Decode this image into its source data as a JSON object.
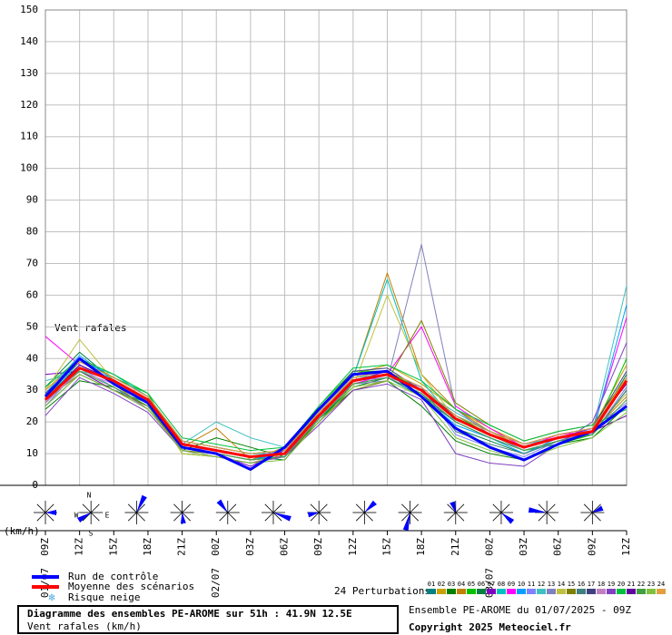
{
  "chart_data": {
    "type": "line",
    "title": "Diagramme des ensembles PE-AROME sur 51h : 41.9N 12.5E",
    "subtitle": "Vent rafales (km/h)",
    "annotation": "Vent rafales",
    "unit_label": "(km/h)",
    "run_info": "Ensemble PE-AROME du 01/07/2025 - 09Z",
    "copyright": "Copyright 2025 Meteociel.fr",
    "snow_legend": "Risque neige",
    "compass": [
      "N",
      "W",
      "E",
      "S"
    ],
    "x": [
      0,
      3,
      6,
      9,
      12,
      15,
      18,
      21,
      24,
      27,
      30,
      33,
      36,
      39,
      42,
      45,
      48,
      51
    ],
    "xlim": [
      0,
      51
    ],
    "xticks": [
      {
        "value": 0,
        "label": "09Z"
      },
      {
        "value": 3,
        "label": "12Z"
      },
      {
        "value": 6,
        "label": "15Z"
      },
      {
        "value": 9,
        "label": "18Z"
      },
      {
        "value": 12,
        "label": "21Z"
      },
      {
        "value": 15,
        "label": "00Z"
      },
      {
        "value": 18,
        "label": "03Z"
      },
      {
        "value": 21,
        "label": "06Z"
      },
      {
        "value": 24,
        "label": "09Z"
      },
      {
        "value": 27,
        "label": "12Z"
      },
      {
        "value": 30,
        "label": "15Z"
      },
      {
        "value": 33,
        "label": "18Z"
      },
      {
        "value": 36,
        "label": "21Z"
      },
      {
        "value": 39,
        "label": "00Z"
      },
      {
        "value": 42,
        "label": "03Z"
      },
      {
        "value": 45,
        "label": "06Z"
      },
      {
        "value": 48,
        "label": "09Z"
      },
      {
        "value": 51,
        "label": "12Z"
      }
    ],
    "date_labels": [
      {
        "value": 0,
        "label": "01/07"
      },
      {
        "value": 15,
        "label": "02/07"
      },
      {
        "value": 39,
        "label": "03/07"
      }
    ],
    "ylim": [
      0,
      150
    ],
    "yticks": [
      0,
      10,
      20,
      30,
      40,
      50,
      60,
      70,
      80,
      90,
      100,
      110,
      120,
      130,
      140,
      150
    ],
    "grid": true,
    "series": [
      {
        "name": "Run de contrôle",
        "color": "#0000ff",
        "values": [
          28,
          40,
          32,
          26,
          12,
          10,
          5,
          12,
          24,
          35,
          36,
          28,
          18,
          12,
          8,
          13,
          17,
          25
        ]
      },
      {
        "name": "Moyenne des scénarios",
        "color": "#ff0000",
        "values": [
          27,
          37,
          33,
          27,
          13,
          11,
          9,
          10,
          22,
          33,
          35,
          30,
          21,
          16,
          12,
          15,
          17,
          33
        ]
      }
    ],
    "perturbations": {
      "title": "24 Perturbations",
      "series": [
        {
          "name": "01",
          "color": "#008080",
          "values": [
            25,
            35,
            30,
            26,
            12,
            10,
            8,
            9,
            20,
            32,
            34,
            28,
            20,
            15,
            11,
            14,
            16,
            30
          ]
        },
        {
          "name": "02",
          "color": "#c8a000",
          "values": [
            30,
            40,
            34,
            28,
            14,
            12,
            10,
            11,
            24,
            35,
            38,
            32,
            24,
            18,
            13,
            16,
            18,
            38
          ]
        },
        {
          "name": "03",
          "color": "#008000",
          "values": [
            24,
            33,
            31,
            25,
            11,
            15,
            12,
            9,
            21,
            30,
            33,
            25,
            14,
            10,
            8,
            13,
            15,
            25
          ]
        },
        {
          "name": "04",
          "color": "#c08000",
          "values": [
            28,
            38,
            32,
            24,
            12,
            18,
            8,
            12,
            23,
            34,
            67,
            35,
            24,
            17,
            12,
            15,
            17,
            28
          ]
        },
        {
          "name": "05",
          "color": "#00c000",
          "values": [
            26,
            36,
            34,
            29,
            10,
            9,
            7,
            10,
            25,
            36,
            36,
            30,
            22,
            16,
            11,
            13,
            16,
            40
          ]
        },
        {
          "name": "06",
          "color": "#008040",
          "values": [
            31,
            42,
            33,
            27,
            13,
            11,
            9,
            8,
            21,
            31,
            34,
            29,
            18,
            14,
            10,
            14,
            17,
            35
          ]
        },
        {
          "name": "07",
          "color": "#8000c0",
          "values": [
            35,
            36,
            30,
            25,
            12,
            10,
            6,
            11,
            22,
            33,
            36,
            31,
            22,
            17,
            13,
            15,
            18,
            32
          ]
        },
        {
          "name": "08",
          "color": "#00c0c0",
          "values": [
            27,
            39,
            35,
            28,
            14,
            12,
            10,
            10,
            23,
            34,
            65,
            33,
            20,
            15,
            11,
            14,
            16,
            30
          ]
        },
        {
          "name": "09",
          "color": "#ff00ff",
          "values": [
            47,
            38,
            32,
            26,
            13,
            11,
            9,
            9,
            22,
            32,
            35,
            50,
            25,
            18,
            12,
            16,
            17,
            53
          ]
        },
        {
          "name": "10",
          "color": "#00a0ff",
          "values": [
            29,
            41,
            33,
            27,
            11,
            10,
            8,
            10,
            24,
            35,
            36,
            28,
            19,
            15,
            10,
            15,
            16,
            57
          ]
        },
        {
          "name": "11",
          "color": "#8080ff",
          "values": [
            25,
            37,
            31,
            24,
            12,
            11,
            9,
            11,
            21,
            33,
            34,
            31,
            16,
            12,
            9,
            14,
            18,
            26
          ]
        },
        {
          "name": "12",
          "color": "#40c0c0",
          "values": [
            33,
            36,
            34,
            28,
            13,
            20,
            15,
            12,
            22,
            34,
            35,
            30,
            23,
            17,
            13,
            15,
            17,
            63
          ]
        },
        {
          "name": "13",
          "color": "#8080c0",
          "values": [
            26,
            38,
            32,
            26,
            12,
            10,
            8,
            9,
            23,
            32,
            33,
            76,
            24,
            16,
            11,
            14,
            16,
            31
          ]
        },
        {
          "name": "14",
          "color": "#c0c040",
          "values": [
            30,
            46,
            33,
            27,
            10,
            9,
            7,
            10,
            22,
            31,
            60,
            35,
            21,
            16,
            12,
            15,
            17,
            29
          ]
        },
        {
          "name": "15",
          "color": "#808000",
          "values": [
            27,
            35,
            30,
            25,
            11,
            10,
            8,
            9,
            20,
            30,
            33,
            52,
            26,
            19,
            14,
            17,
            19,
            34
          ]
        },
        {
          "name": "16",
          "color": "#408080",
          "values": [
            28,
            37,
            33,
            27,
            13,
            11,
            9,
            10,
            23,
            34,
            36,
            31,
            17,
            13,
            10,
            14,
            16,
            30
          ]
        },
        {
          "name": "17",
          "color": "#404080",
          "values": [
            29,
            39,
            34,
            28,
            14,
            12,
            10,
            11,
            24,
            36,
            37,
            30,
            22,
            17,
            13,
            16,
            18,
            36
          ]
        },
        {
          "name": "18",
          "color": "#c080c0",
          "values": [
            26,
            36,
            32,
            26,
            12,
            10,
            8,
            9,
            21,
            32,
            34,
            29,
            20,
            15,
            11,
            14,
            17,
            33
          ]
        },
        {
          "name": "19",
          "color": "#8040c0",
          "values": [
            22,
            34,
            29,
            23,
            11,
            9,
            7,
            9,
            19,
            30,
            32,
            27,
            10,
            7,
            6,
            13,
            20,
            45
          ]
        },
        {
          "name": "20",
          "color": "#00c040",
          "values": [
            31,
            40,
            35,
            29,
            15,
            13,
            11,
            12,
            25,
            37,
            38,
            33,
            24,
            19,
            14,
            17,
            19,
            24
          ]
        },
        {
          "name": "21",
          "color": "#6000a0",
          "values": [
            27,
            38,
            33,
            27,
            13,
            11,
            9,
            10,
            22,
            33,
            35,
            30,
            21,
            16,
            12,
            15,
            17,
            22
          ]
        },
        {
          "name": "22",
          "color": "#40a040",
          "values": [
            28,
            36,
            31,
            25,
            12,
            10,
            8,
            9,
            21,
            32,
            34,
            29,
            20,
            15,
            11,
            14,
            16,
            27
          ]
        },
        {
          "name": "23",
          "color": "#80c040",
          "values": [
            25,
            35,
            30,
            24,
            11,
            9,
            7,
            8,
            20,
            31,
            33,
            28,
            15,
            11,
            8,
            12,
            15,
            23
          ]
        },
        {
          "name": "24",
          "color": "#e0a040",
          "values": [
            30,
            39,
            34,
            28,
            14,
            12,
            10,
            11,
            23,
            34,
            36,
            31,
            22,
            17,
            13,
            16,
            18,
            34
          ]
        }
      ]
    }
  }
}
